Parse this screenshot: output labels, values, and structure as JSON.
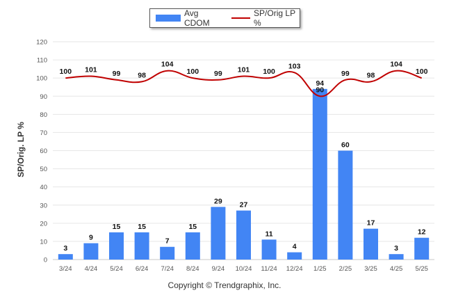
{
  "legend": {
    "bar_label": "Avg CDOM",
    "line_label": "SP/Orig LP %"
  },
  "footer": "Copyright © Trendgraphix, Inc.",
  "chart_data": {
    "type": "bar",
    "ylabel": "SP/Orig. LP %",
    "ylim": [
      0,
      120
    ],
    "yticks": [
      0,
      10,
      20,
      30,
      40,
      50,
      60,
      70,
      80,
      90,
      100,
      110,
      120
    ],
    "categories": [
      "3/24",
      "4/24",
      "5/24",
      "6/24",
      "7/24",
      "8/24",
      "9/24",
      "10/24",
      "11/24",
      "12/24",
      "1/25",
      "2/25",
      "3/25",
      "4/25",
      "5/25"
    ],
    "series": [
      {
        "name": "Avg CDOM",
        "type": "bar",
        "color": "#4285F4",
        "values": [
          3,
          9,
          15,
          15,
          7,
          15,
          29,
          27,
          11,
          4,
          94,
          60,
          17,
          3,
          12
        ]
      },
      {
        "name": "SP/Orig LP %",
        "type": "line",
        "color": "#c00000",
        "values": [
          100,
          101,
          99,
          98,
          104,
          100,
          99,
          101,
          100,
          103,
          90,
          99,
          98,
          104,
          100
        ]
      }
    ],
    "grid": true,
    "legend_position": "top-center"
  }
}
